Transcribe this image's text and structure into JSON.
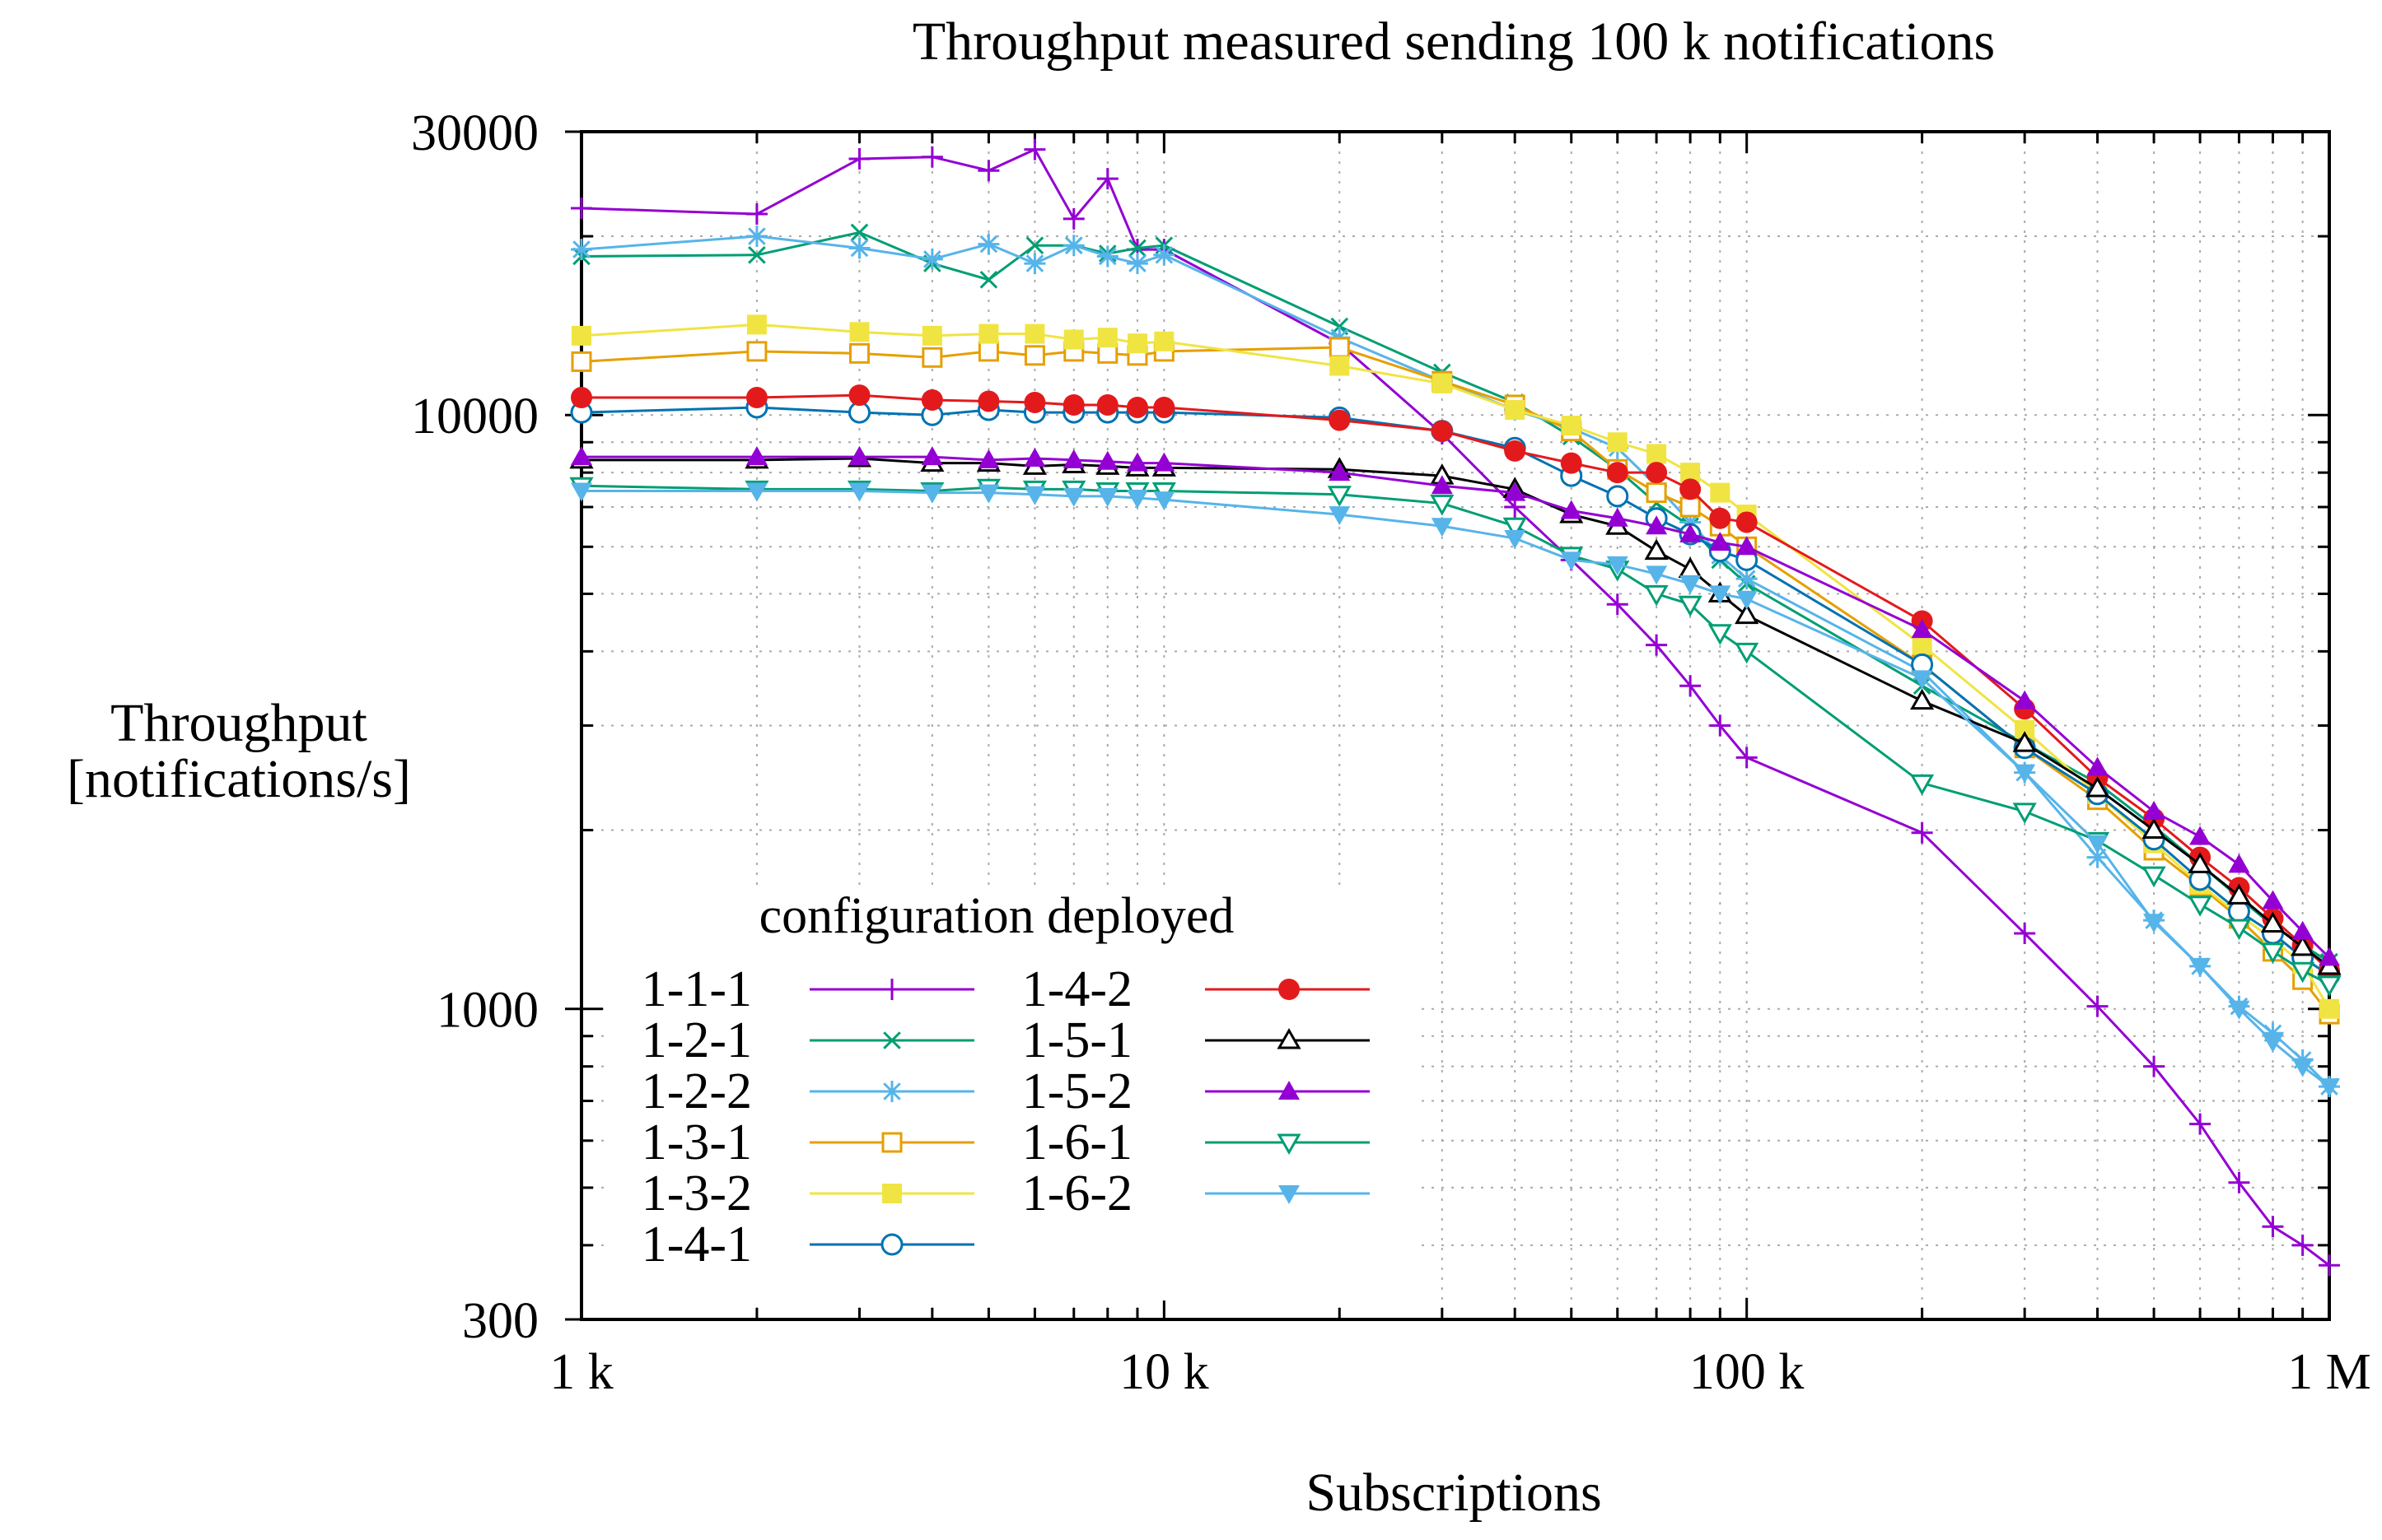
{
  "chart_data": {
    "type": "line",
    "title": "Throughput measured sending 100 k notifications",
    "xlabel": "Subscriptions",
    "ylabel_line1": "Throughput",
    "ylabel_line2": "[notifications/s]",
    "xscale": "log",
    "yscale": "log",
    "xlim": [
      1000,
      1000000
    ],
    "ylim": [
      300,
      30000
    ],
    "grid": true,
    "legend_title": "configuration deployed",
    "legend_position": "bottom-left",
    "x_ticks": [
      {
        "value": 1000,
        "label": "1 k"
      },
      {
        "value": 10000,
        "label": "10 k"
      },
      {
        "value": 100000,
        "label": "100 k"
      },
      {
        "value": 1000000,
        "label": "1 M"
      }
    ],
    "y_ticks": [
      {
        "value": 300,
        "label": "300"
      },
      {
        "value": 1000,
        "label": "1000"
      },
      {
        "value": 10000,
        "label": "10000"
      },
      {
        "value": 30000,
        "label": "30000"
      }
    ],
    "x": [
      1000,
      2000,
      3000,
      4000,
      5000,
      6000,
      7000,
      8000,
      9000,
      10000,
      20000,
      30000,
      40000,
      50000,
      60000,
      70000,
      80000,
      90000,
      100000,
      200000,
      300000,
      400000,
      500000,
      600000,
      700000,
      800000,
      900000,
      1000000
    ],
    "series": [
      {
        "name": "1-1-1",
        "color": "#9400d3",
        "marker": "plus",
        "values": [
          22300,
          21800,
          27000,
          27200,
          25800,
          28000,
          21400,
          25000,
          19000,
          19000,
          13200,
          9300,
          7000,
          5700,
          4800,
          4100,
          3500,
          3000,
          2650,
          1980,
          1340,
          1010,
          800,
          640,
          510,
          430,
          400,
          370
        ]
      },
      {
        "name": "1-2-1",
        "color": "#009e73",
        "marker": "cross",
        "values": [
          18500,
          18600,
          20300,
          18000,
          16900,
          19300,
          19300,
          18700,
          19100,
          19300,
          14100,
          11800,
          10500,
          9200,
          8100,
          7100,
          6500,
          5700,
          5200,
          3500,
          2800,
          2400,
          2030,
          1750,
          1540,
          1380,
          1280,
          1200
        ]
      },
      {
        "name": "1-2-2",
        "color": "#56b4e9",
        "marker": "star",
        "values": [
          19000,
          20000,
          19100,
          18300,
          19400,
          18000,
          19300,
          18500,
          18000,
          18600,
          13500,
          11400,
          10200,
          9500,
          8800,
          7600,
          6600,
          5800,
          5300,
          3700,
          2500,
          1800,
          1410,
          1180,
          1010,
          910,
          820,
          740
        ]
      },
      {
        "name": "1-3-1",
        "color": "#e69f00",
        "marker": "square-open",
        "values": [
          12300,
          12800,
          12700,
          12500,
          12800,
          12600,
          12800,
          12700,
          12600,
          12800,
          13000,
          11400,
          10400,
          9400,
          8100,
          7400,
          7000,
          6500,
          6000,
          3800,
          2750,
          2250,
          1850,
          1610,
          1420,
          1250,
          1120,
          980
        ]
      },
      {
        "name": "1-3-2",
        "color": "#f0e442",
        "marker": "square",
        "values": [
          13600,
          14200,
          13800,
          13600,
          13700,
          13700,
          13400,
          13500,
          13200,
          13300,
          12100,
          11300,
          10200,
          9600,
          9000,
          8600,
          8000,
          7400,
          6800,
          4100,
          2950,
          2300,
          1900,
          1620,
          1440,
          1310,
          1190,
          1000
        ]
      },
      {
        "name": "1-4-1",
        "color": "#0072b2",
        "marker": "circle-open",
        "values": [
          10100,
          10300,
          10100,
          10000,
          10200,
          10100,
          10100,
          10100,
          10100,
          10100,
          9900,
          9400,
          8800,
          7900,
          7300,
          6700,
          6300,
          5900,
          5700,
          3800,
          2750,
          2300,
          1930,
          1650,
          1460,
          1340,
          1220,
          1140
        ]
      },
      {
        "name": "1-4-2",
        "color": "#e31a1c",
        "marker": "circle",
        "values": [
          10700,
          10700,
          10800,
          10600,
          10550,
          10500,
          10400,
          10400,
          10300,
          10300,
          9800,
          9400,
          8700,
          8300,
          8000,
          8000,
          7500,
          6700,
          6600,
          4500,
          3200,
          2450,
          2090,
          1800,
          1600,
          1420,
          1280,
          1160
        ]
      },
      {
        "name": "1-5-1",
        "color": "#000000",
        "marker": "triangle-open",
        "values": [
          8400,
          8400,
          8450,
          8300,
          8300,
          8200,
          8250,
          8200,
          8150,
          8150,
          8100,
          7900,
          7500,
          6800,
          6500,
          5900,
          5500,
          5000,
          4600,
          3300,
          2800,
          2350,
          2000,
          1750,
          1550,
          1390,
          1270,
          1180
        ]
      },
      {
        "name": "1-5-2",
        "color": "#9400d3",
        "marker": "triangle",
        "values": [
          8500,
          8500,
          8500,
          8500,
          8400,
          8450,
          8400,
          8350,
          8300,
          8300,
          8000,
          7600,
          7400,
          6900,
          6700,
          6500,
          6300,
          6100,
          6000,
          4350,
          3300,
          2550,
          2150,
          1950,
          1750,
          1520,
          1350,
          1220
        ]
      },
      {
        "name": "1-6-1",
        "color": "#009e73",
        "marker": "triangle-down-open",
        "values": [
          7600,
          7500,
          7500,
          7450,
          7550,
          7500,
          7500,
          7450,
          7450,
          7450,
          7350,
          7100,
          6500,
          5800,
          5500,
          5000,
          4800,
          4300,
          4000,
          2400,
          2150,
          1920,
          1680,
          1500,
          1370,
          1250,
          1160,
          1100
        ]
      },
      {
        "name": "1-6-2",
        "color": "#56b4e9",
        "marker": "triangle-down",
        "values": [
          7450,
          7450,
          7450,
          7400,
          7400,
          7350,
          7300,
          7300,
          7250,
          7200,
          6800,
          6500,
          6200,
          5700,
          5600,
          5400,
          5200,
          5000,
          4900,
          3600,
          2500,
          1900,
          1400,
          1180,
          1000,
          880,
          800,
          740
        ]
      }
    ]
  }
}
